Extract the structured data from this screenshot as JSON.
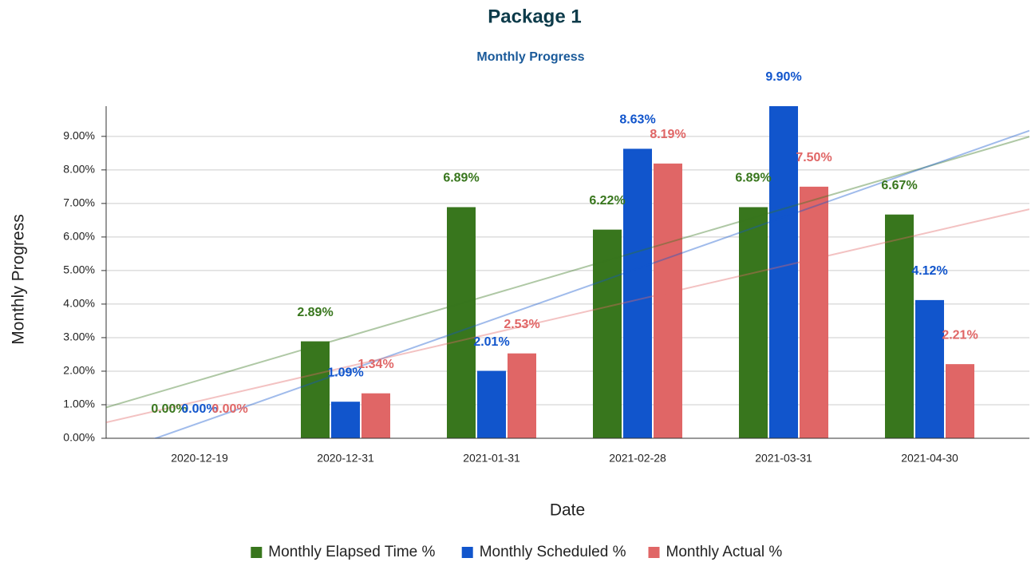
{
  "chart_data": {
    "type": "bar",
    "title": "Package 1",
    "subtitle": "Monthly Progress",
    "x_label": "Date",
    "y_label": "Monthly Progress",
    "categories": [
      "2020-12-19",
      "2020-12-31",
      "2021-01-31",
      "2021-02-28",
      "2021-03-31",
      "2021-04-30"
    ],
    "series": [
      {
        "name": "Monthly Elapsed Time %",
        "color": "#38761d",
        "values": [
          0,
          2.89,
          6.89,
          6.22,
          6.89,
          6.67
        ],
        "value_labels": [
          "0.00%",
          "2.89%",
          "6.89%",
          "6.22%",
          "6.89%",
          "6.67%"
        ]
      },
      {
        "name": "Monthly Scheduled %",
        "color": "#1155cc",
        "values": [
          0,
          1.09,
          2.01,
          8.63,
          9.9,
          4.12
        ],
        "value_labels": [
          "0.00%",
          "1.09%",
          "2.01%",
          "8.63%",
          "9.90%",
          "4.12%"
        ]
      },
      {
        "name": "Monthly Actual %",
        "color": "#e06666",
        "values": [
          0,
          1.34,
          2.53,
          8.19,
          7.5,
          2.21
        ],
        "value_labels": [
          "0.00%",
          "1.34%",
          "2.53%",
          "8.19%",
          "7.50%",
          "2.21%"
        ]
      }
    ],
    "ylim": [
      0,
      9.9
    ],
    "yticks": [
      {
        "value": 0,
        "label": "0.00%"
      },
      {
        "value": 1,
        "label": "1.00%"
      },
      {
        "value": 2,
        "label": "2.00%"
      },
      {
        "value": 3,
        "label": "3.00%"
      },
      {
        "value": 4,
        "label": "4.00%"
      },
      {
        "value": 5,
        "label": "5.00%"
      },
      {
        "value": 6,
        "label": "6.00%"
      },
      {
        "value": 7,
        "label": "7.00%"
      },
      {
        "value": 8,
        "label": "8.00%"
      },
      {
        "value": 9,
        "label": "9.00%"
      }
    ],
    "grid": true,
    "trendlines": true,
    "legend": "bottom"
  }
}
